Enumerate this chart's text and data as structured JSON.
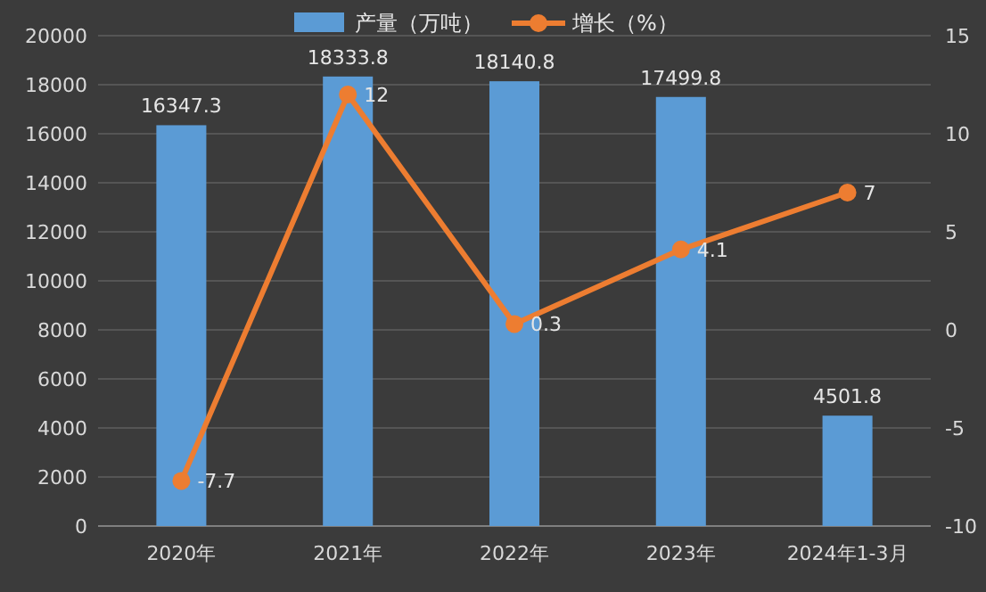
{
  "chart_data": {
    "type": "bar",
    "categories": [
      "2020年",
      "2021年",
      "2022年",
      "2023年",
      "2024年1-3月"
    ],
    "series": [
      {
        "name": "产量（万吨）",
        "color": "#5b9bd5",
        "values": [
          16347.3,
          18333.8,
          18140.8,
          17499.8,
          4501.8
        ]
      },
      {
        "name": "增长（%）",
        "type": "line",
        "axis": "y2",
        "color": "#ed7d31",
        "marker": "circle",
        "values": [
          -7.7,
          12,
          0.3,
          4.1,
          7
        ]
      }
    ],
    "ylim": [
      0,
      20000
    ],
    "yticks": [
      0,
      2000,
      4000,
      6000,
      8000,
      10000,
      12000,
      14000,
      16000,
      18000,
      20000
    ],
    "y2lim": [
      -10,
      15
    ],
    "y2ticks": [
      -10,
      -5,
      0,
      5,
      10,
      15
    ],
    "grid": "y",
    "legend": "top",
    "data_labels": true
  }
}
